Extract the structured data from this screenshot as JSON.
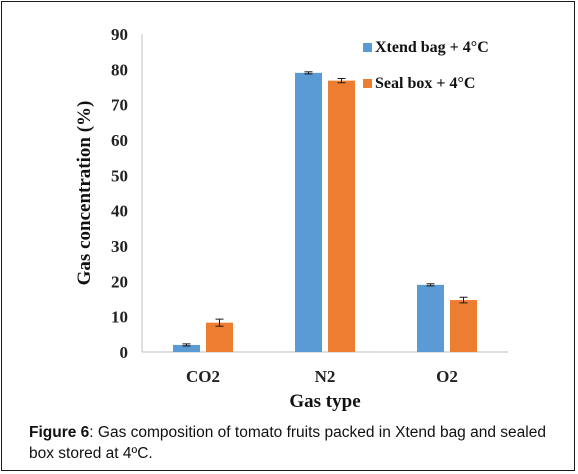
{
  "chart_data": {
    "type": "bar",
    "categories": [
      "CO2",
      "N2",
      "O2"
    ],
    "series": [
      {
        "name": "Xtend bag + 4°C",
        "values": [
          2.0,
          79.0,
          19.0
        ],
        "errors": [
          0.3,
          0.3,
          0.3
        ],
        "color": "#5b9bd5"
      },
      {
        "name": "Seal box + 4°C",
        "values": [
          8.3,
          76.8,
          14.7
        ],
        "errors": [
          1.0,
          0.6,
          0.8
        ],
        "color": "#ed7d31"
      }
    ],
    "xlabel": "Gas type",
    "ylabel": "Gas concentration (%)",
    "ylim": [
      0,
      90
    ],
    "yticks": [
      0,
      10,
      20,
      30,
      40,
      50,
      60,
      70,
      80,
      90
    ],
    "grid": false,
    "legend_position": "top-right"
  },
  "caption": {
    "label": "Figure 6",
    "text": ": Gas composition of tomato fruits packed in Xtend bag and sealed box stored at 4ºC."
  }
}
